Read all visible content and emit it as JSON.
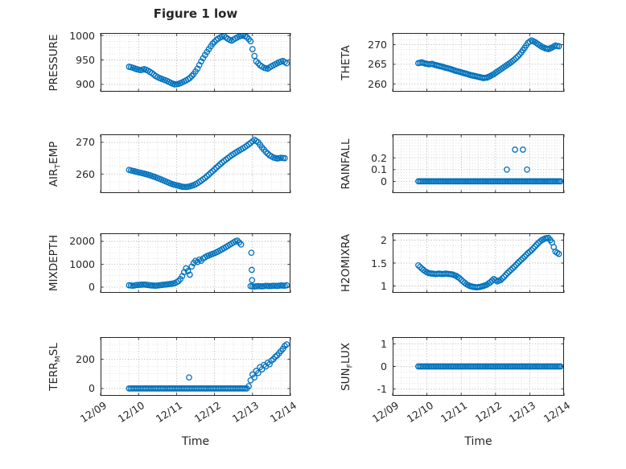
{
  "title": "Figure 1 low",
  "xlabel": "Time",
  "colors": {
    "marker": "#0072BD",
    "axis": "#262626",
    "grid_major": "#ababab",
    "grid_minor": "#dcdcdc"
  },
  "x_axis": {
    "lim": [
      0,
      5
    ],
    "ticks": [
      0,
      1,
      2,
      3,
      4,
      5
    ],
    "tick_labels": [
      "12/09",
      "12/10",
      "12/11",
      "12/12",
      "12/13",
      "12/14"
    ]
  },
  "chart_data": [
    {
      "type": "scatter",
      "name": "PRESSURE",
      "ylabel_parts": [
        {
          "text": "PRESSURE"
        }
      ],
      "ylim": [
        885,
        1005
      ],
      "yticks": [
        900,
        950,
        1000
      ],
      "ytick_labels": [
        "900",
        "950",
        "1000"
      ],
      "segments": [
        {
          "x": [
            0.75,
            0.85,
            0.95,
            1.05,
            1.15,
            1.25,
            1.35,
            1.45,
            1.55,
            1.65,
            1.75,
            1.85,
            1.95,
            2.05,
            2.15,
            2.25,
            2.35,
            2.45,
            2.55,
            2.65,
            2.75,
            2.85,
            2.95,
            3.05,
            3.15,
            3.25,
            3.35,
            3.45,
            3.55,
            3.65,
            3.75,
            3.85,
            3.95,
            4.0,
            4.05,
            4.1,
            4.2,
            4.3,
            4.4,
            4.5,
            4.6,
            4.7,
            4.8,
            4.9
          ],
          "y": [
            936,
            934,
            931,
            929,
            931,
            928,
            923,
            917,
            913,
            910,
            907,
            903,
            900,
            901,
            904,
            908,
            913,
            921,
            932,
            947,
            960,
            972,
            983,
            991,
            996,
            999,
            993,
            989,
            994,
            998,
            1000,
            997,
            988,
            972,
            958,
            947,
            939,
            934,
            932,
            937,
            941,
            945,
            948,
            943
          ]
        }
      ],
      "points": {
        "x": [],
        "y": []
      }
    },
    {
      "type": "scatter",
      "name": "THETA",
      "ylabel_parts": [
        {
          "text": "THETA"
        }
      ],
      "ylim": [
        258,
        273
      ],
      "yticks": [
        260,
        265,
        270
      ],
      "ytick_labels": [
        "260",
        "265",
        "270"
      ],
      "segments": [
        {
          "x": [
            0.75,
            0.85,
            0.95,
            1.05,
            1.15,
            1.25,
            1.35,
            1.45,
            1.55,
            1.65,
            1.75,
            1.85,
            1.95,
            2.05,
            2.15,
            2.25,
            2.35,
            2.45,
            2.55,
            2.65,
            2.75,
            2.85,
            2.95,
            3.05,
            3.15,
            3.25,
            3.35,
            3.45,
            3.55,
            3.65,
            3.75,
            3.85,
            3.95,
            4.05,
            4.15,
            4.25,
            4.35,
            4.45,
            4.55,
            4.65,
            4.75,
            4.85
          ],
          "y": [
            265.3,
            265.5,
            265.2,
            265.0,
            265.1,
            264.8,
            264.6,
            264.4,
            264.1,
            263.9,
            263.6,
            263.3,
            263.1,
            262.8,
            262.6,
            262.3,
            262.1,
            261.9,
            261.7,
            261.5,
            261.6,
            262.0,
            262.5,
            263.1,
            263.7,
            264.3,
            264.9,
            265.5,
            266.2,
            267.0,
            268.0,
            269.2,
            270.5,
            271.1,
            270.7,
            270.1,
            269.5,
            269.1,
            268.9,
            269.3,
            269.8,
            269.6
          ]
        }
      ],
      "points": {
        "x": [],
        "y": []
      }
    },
    {
      "type": "scatter",
      "name": "AIR_TEMP",
      "ylabel_parts": [
        {
          "text": "AIR"
        },
        {
          "text": "T",
          "sub": true
        },
        {
          "text": "EMP"
        }
      ],
      "ylim": [
        254,
        272.5
      ],
      "yticks": [
        260,
        270
      ],
      "ytick_labels": [
        "260",
        "270"
      ],
      "segments": [
        {
          "x": [
            0.75,
            0.85,
            0.95,
            1.05,
            1.15,
            1.25,
            1.35,
            1.45,
            1.55,
            1.65,
            1.75,
            1.85,
            1.95,
            2.05,
            2.15,
            2.25,
            2.35,
            2.45,
            2.55,
            2.65,
            2.75,
            2.85,
            2.95,
            3.05,
            3.15,
            3.25,
            3.35,
            3.45,
            3.55,
            3.65,
            3.75,
            3.85,
            3.95,
            4.05,
            4.15,
            4.25,
            4.35,
            4.45,
            4.55,
            4.65,
            4.75,
            4.85
          ],
          "y": [
            261.3,
            261.0,
            260.7,
            260.4,
            260.1,
            259.8,
            259.4,
            259.0,
            258.5,
            258.0,
            257.5,
            257.0,
            256.6,
            256.3,
            256.0,
            255.9,
            256.1,
            256.5,
            257.1,
            257.9,
            258.8,
            259.8,
            260.9,
            262.0,
            263.1,
            264.1,
            265.0,
            265.9,
            266.7,
            267.4,
            268.1,
            268.9,
            269.8,
            270.8,
            270.0,
            268.4,
            267.0,
            265.9,
            265.2,
            264.9,
            265.1,
            265.0
          ]
        }
      ],
      "points": {
        "x": [],
        "y": []
      }
    },
    {
      "type": "scatter",
      "name": "RAINFALL",
      "ylabel_parts": [
        {
          "text": "RAINFALL"
        }
      ],
      "ylim": [
        -0.1,
        0.4
      ],
      "yticks": [
        0,
        0.1,
        0.2
      ],
      "ytick_labels": [
        "0",
        "0.1",
        "0.2"
      ],
      "segments": [
        {
          "x": [
            0.75,
            4.9
          ],
          "y": [
            0,
            0
          ]
        }
      ],
      "points": {
        "x": [
          3.33,
          3.57,
          3.8,
          3.92
        ],
        "y": [
          0.1,
          0.27,
          0.27,
          0.1
        ]
      }
    },
    {
      "type": "scatter",
      "name": "MIXDEPTH",
      "ylabel_parts": [
        {
          "text": "MIXDEPTH"
        }
      ],
      "ylim": [
        -250,
        2350
      ],
      "yticks": [
        0,
        1000,
        2000
      ],
      "ytick_labels": [
        "0",
        "1000",
        "2000"
      ],
      "segments": [
        {
          "x": [
            0.75,
            0.85,
            0.95,
            1.05,
            1.15,
            1.25,
            1.35,
            1.45,
            1.55,
            1.65,
            1.75,
            1.85,
            1.95,
            2.05,
            2.1,
            2.15,
            2.2,
            2.25,
            2.3,
            2.35,
            2.4,
            2.45,
            2.5,
            2.55,
            2.6,
            2.65,
            2.7,
            2.75,
            2.8,
            2.9,
            3.0,
            3.1,
            3.2,
            3.3,
            3.4,
            3.5,
            3.55,
            3.6,
            3.65,
            3.7
          ],
          "y": [
            80,
            60,
            90,
            100,
            110,
            90,
            70,
            60,
            80,
            100,
            120,
            140,
            170,
            260,
            350,
            480,
            650,
            820,
            700,
            540,
            900,
            1050,
            1150,
            1100,
            1200,
            1150,
            1250,
            1300,
            1350,
            1420,
            1480,
            1560,
            1650,
            1750,
            1850,
            1950,
            2000,
            2030,
            1950,
            1860
          ]
        },
        {
          "x": [
            3.95,
            4.05,
            4.15,
            4.25,
            4.35,
            4.45,
            4.55,
            4.65,
            4.75,
            4.85,
            4.9
          ],
          "y": [
            40,
            25,
            45,
            30,
            55,
            40,
            60,
            50,
            70,
            60,
            80
          ]
        }
      ],
      "points": {
        "x": [
          3.97,
          3.98,
          3.99
        ],
        "y": [
          1500,
          750,
          300
        ]
      }
    },
    {
      "type": "scatter",
      "name": "H2OMIXRA",
      "ylabel_parts": [
        {
          "text": "H2OMIXRA"
        }
      ],
      "ylim": [
        0.85,
        2.15
      ],
      "yticks": [
        1,
        1.5,
        2
      ],
      "ytick_labels": [
        "1",
        "1.5",
        "2"
      ],
      "segments": [
        {
          "x": [
            0.75,
            0.85,
            0.95,
            1.05,
            1.15,
            1.25,
            1.35,
            1.45,
            1.55,
            1.65,
            1.75,
            1.85,
            1.95,
            2.05,
            2.15,
            2.25,
            2.35,
            2.45,
            2.55,
            2.65,
            2.75,
            2.85,
            2.95,
            3.05,
            3.15,
            3.25,
            3.35,
            3.45,
            3.55,
            3.65,
            3.75,
            3.85,
            3.95,
            4.05,
            4.15,
            4.25,
            4.35,
            4.45,
            4.55,
            4.65,
            4.75,
            4.85
          ],
          "y": [
            1.45,
            1.38,
            1.32,
            1.28,
            1.27,
            1.26,
            1.27,
            1.26,
            1.27,
            1.26,
            1.25,
            1.22,
            1.17,
            1.1,
            1.04,
            1.0,
            0.98,
            0.97,
            0.98,
            1.0,
            1.03,
            1.08,
            1.15,
            1.1,
            1.13,
            1.2,
            1.28,
            1.35,
            1.42,
            1.5,
            1.57,
            1.64,
            1.72,
            1.78,
            1.86,
            1.94,
            2.0,
            2.04,
            2.05,
            1.95,
            1.75,
            1.7
          ]
        }
      ],
      "points": {
        "x": [],
        "y": []
      }
    },
    {
      "type": "scatter",
      "name": "TERR_MSL",
      "ylabel_parts": [
        {
          "text": "TERR"
        },
        {
          "text": "M",
          "sub": true
        },
        {
          "text": "SL"
        }
      ],
      "ylim": [
        -50,
        350
      ],
      "yticks": [
        0,
        200
      ],
      "ytick_labels": [
        "0",
        "200"
      ],
      "segments": [
        {
          "x": [
            0.75,
            3.85
          ],
          "y": [
            0,
            0
          ]
        },
        {
          "x": [
            3.9,
            3.95,
            4.0,
            4.05,
            4.1,
            4.15,
            4.2,
            4.25,
            4.3,
            4.35,
            4.4,
            4.45,
            4.5,
            4.55,
            4.6,
            4.65,
            4.7,
            4.75,
            4.8,
            4.85,
            4.9
          ],
          "y": [
            15,
            55,
            95,
            75,
            120,
            105,
            145,
            130,
            160,
            150,
            175,
            165,
            190,
            200,
            215,
            225,
            240,
            255,
            270,
            290,
            300
          ]
        }
      ],
      "points": {
        "x": [
          2.33
        ],
        "y": [
          75
        ]
      }
    },
    {
      "type": "scatter",
      "name": "SUN_FLUX",
      "ylabel_parts": [
        {
          "text": "SUN"
        },
        {
          "text": "F",
          "sub": true
        },
        {
          "text": "LUX"
        }
      ],
      "ylim": [
        -1.3,
        1.3
      ],
      "yticks": [
        -1,
        0,
        1
      ],
      "ytick_labels": [
        "-1",
        "0",
        "1"
      ],
      "segments": [
        {
          "x": [
            0.75,
            4.9
          ],
          "y": [
            0,
            0
          ]
        }
      ],
      "points": {
        "x": [],
        "y": []
      }
    }
  ]
}
